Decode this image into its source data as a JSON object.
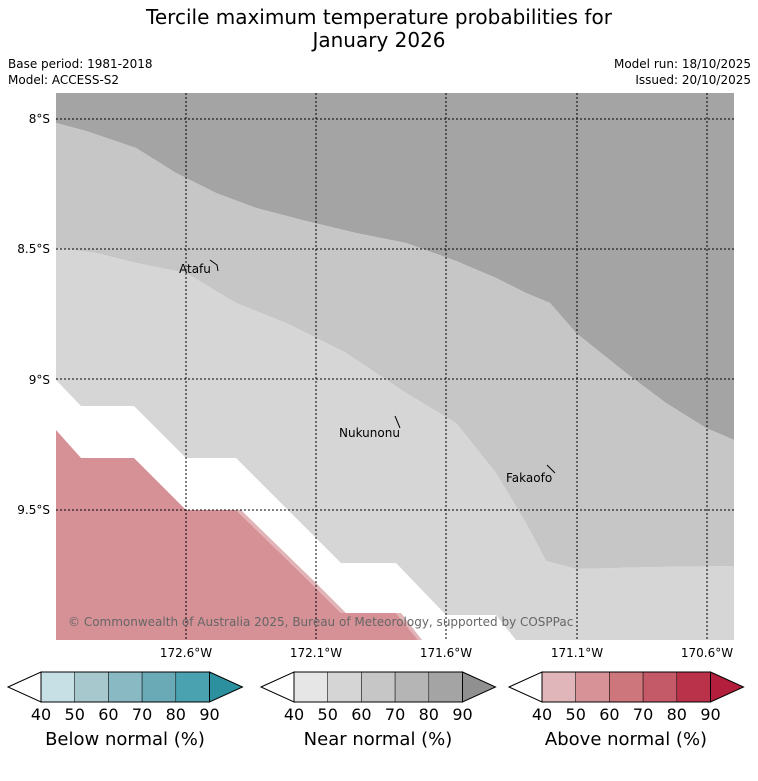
{
  "title_line1": "Tercile maximum temperature probabilities for",
  "title_line2": "January 2026",
  "base_period": "Base period: 1981-2018",
  "model": "Model: ACCESS-S2",
  "model_run": "Model run: 18/10/2025",
  "issued": "Issued: 20/10/2025",
  "copyright": "© Commonwealth of Australia 2025, Bureau of Meteorology, supported by COSPPac",
  "lat_labels": [
    "8°S",
    "8.5°S",
    "9°S",
    "9.5°S"
  ],
  "lon_labels": [
    "172.6°W",
    "172.1°W",
    "171.6°W",
    "171.1°W",
    "170.6°W"
  ],
  "places": [
    "Atafu",
    "Nukunonu",
    "Fakaofo"
  ],
  "colorbars": [
    {
      "name": "Below normal (%)",
      "ticks": [
        "40",
        "50",
        "60",
        "70",
        "80",
        "90"
      ],
      "colors": [
        "#c6e0e6",
        "#a7c9ce",
        "#89b9c3",
        "#6aaab6",
        "#4aa1b0",
        "#2c909f"
      ]
    },
    {
      "name": "Near normal (%)",
      "ticks": [
        "40",
        "50",
        "60",
        "70",
        "80",
        "90"
      ],
      "colors": [
        "#e6e6e6",
        "#d5d5d5",
        "#c6c6c6",
        "#b5b5b5",
        "#a4a4a4",
        "#909090"
      ]
    },
    {
      "name": "Above normal (%)",
      "ticks": [
        "40",
        "50",
        "60",
        "70",
        "80",
        "90"
      ],
      "colors": [
        "#e1b6ba",
        "#d79298",
        "#cd777d",
        "#c45a68",
        "#b93249",
        "#b21e3c"
      ]
    }
  ],
  "map_colors": {
    "near_80": "#a4a4a4",
    "near_70": "#c6c6c6",
    "near_60": "#d6d6d6",
    "above_60": "#d69196",
    "above_50": "#e1b4b8"
  }
}
